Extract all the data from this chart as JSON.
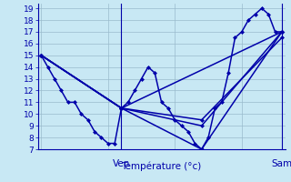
{
  "xlabel": "Température (°c)",
  "ylim": [
    7,
    19.4
  ],
  "xlim": [
    -0.5,
    36.5
  ],
  "yticks": [
    7,
    8,
    9,
    10,
    11,
    12,
    13,
    14,
    15,
    16,
    17,
    18,
    19
  ],
  "background_color": "#c8e8f4",
  "grid_color": "#99bbcc",
  "line_color": "#0000aa",
  "line_width": 1.1,
  "marker": "D",
  "marker_size": 2.0,
  "ven_x": 12,
  "sam_x": 36,
  "ven_label": "Ven",
  "sam_label": "Sam",
  "tick_fontsize": 6.5,
  "label_fontsize": 7.5,
  "main_x": [
    0,
    1,
    2,
    3,
    4,
    5,
    6,
    7,
    8,
    9,
    10,
    11,
    12,
    13,
    14,
    15,
    16,
    17,
    18,
    19,
    20,
    21,
    22,
    23,
    24,
    25,
    26,
    27,
    28,
    29,
    30,
    31,
    32,
    33,
    34,
    35,
    36
  ],
  "main_y": [
    15,
    14,
    13,
    12,
    11,
    11,
    10,
    9.5,
    8.5,
    8,
    7.5,
    7.5,
    10.5,
    11,
    12,
    13,
    14,
    13.5,
    11,
    10.5,
    9.5,
    9,
    8.5,
    7.5,
    7,
    8,
    10.5,
    11,
    13.5,
    16.5,
    17,
    18,
    18.5,
    19,
    18.5,
    17,
    17
  ],
  "line2_x": [
    0,
    12,
    24,
    36
  ],
  "line2_y": [
    15,
    10.5,
    7,
    17
  ],
  "line3_x": [
    0,
    12,
    36
  ],
  "line3_y": [
    15,
    10.5,
    17
  ],
  "line4_x": [
    0,
    12,
    24,
    36
  ],
  "line4_y": [
    15,
    10.5,
    9,
    17
  ],
  "line5_x": [
    0,
    12,
    24,
    36
  ],
  "line5_y": [
    15,
    10.5,
    9.5,
    16.5
  ]
}
